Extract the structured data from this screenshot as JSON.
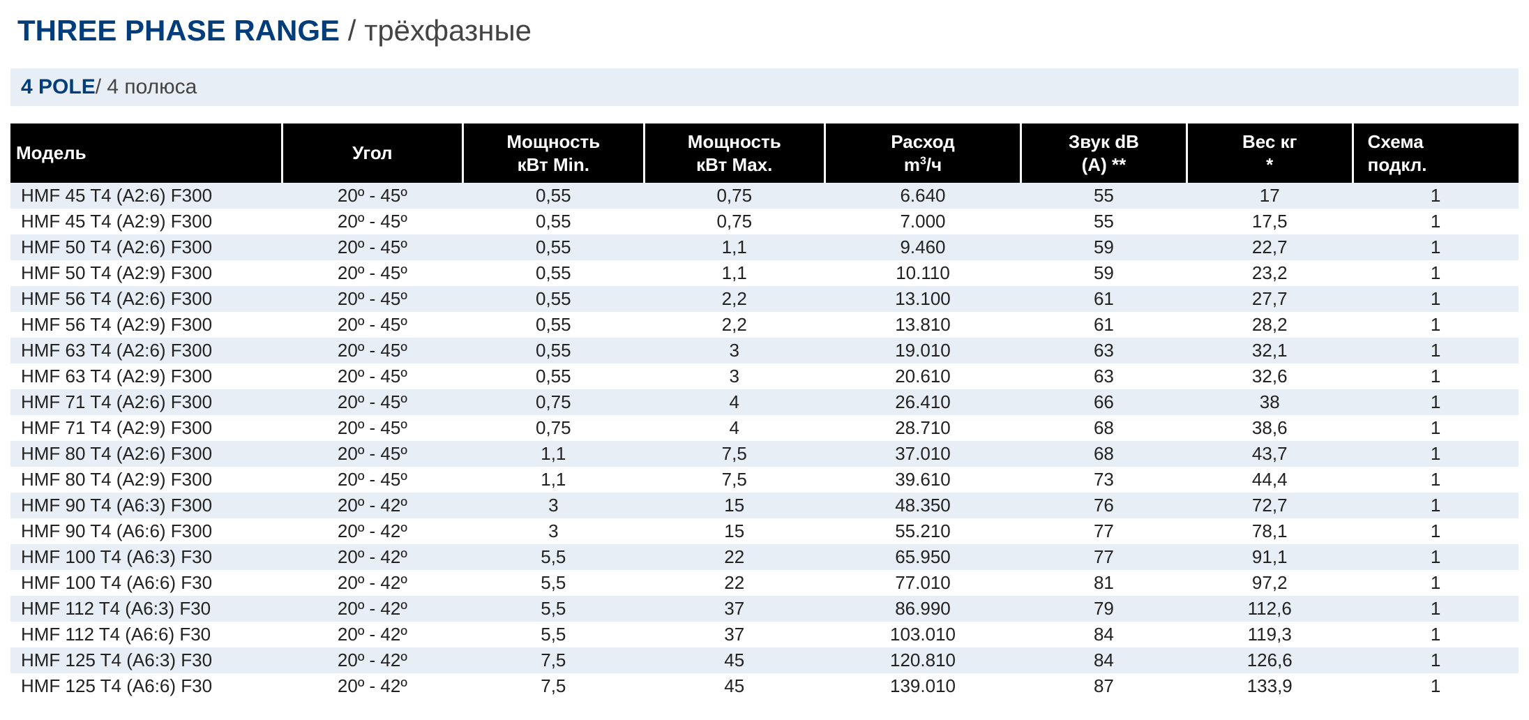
{
  "title": {
    "bold": "THREE PHASE RANGE",
    "sep": " / ",
    "light": "трёхфазные"
  },
  "subtitle": {
    "bold": "4 POLE",
    "sep": "/ ",
    "light": "4 полюса"
  },
  "table": {
    "type": "table",
    "header_bg": "#000000",
    "header_fg": "#ffffff",
    "row_odd_bg": "#e8eef5",
    "row_even_bg": "#ffffff",
    "text_color": "#222222",
    "font_size_pt": 20,
    "columns": [
      {
        "key": "model",
        "label_html": "Модель",
        "align": "left",
        "width_pct": 18
      },
      {
        "key": "angle",
        "label_html": "Угол",
        "align": "center",
        "width_pct": 12
      },
      {
        "key": "kw_min",
        "label_html": "Мощность<br>кВт Min.",
        "align": "center",
        "width_pct": 12
      },
      {
        "key": "kw_max",
        "label_html": "Мощность<br>кВт Max.",
        "align": "center",
        "width_pct": 12
      },
      {
        "key": "flow",
        "label_html": "Расход<br>m<sup>3</sup>/ч",
        "align": "center",
        "width_pct": 13
      },
      {
        "key": "noise",
        "label_html": "Звук dB<br>(A) **",
        "align": "center",
        "width_pct": 11
      },
      {
        "key": "weight",
        "label_html": "Вес кг<br>*",
        "align": "center",
        "width_pct": 11
      },
      {
        "key": "scheme",
        "label_html": "Схема<br>подкл.",
        "align": "left",
        "width_pct": 11
      }
    ],
    "rows": [
      {
        "model": "HMF 45 T4 (A2:6) F300",
        "angle": "20º - 45º",
        "kw_min": "0,55",
        "kw_max": "0,75",
        "flow": "6.640",
        "noise": "55",
        "weight": "17",
        "scheme": "1"
      },
      {
        "model": "HMF 45 T4 (A2:9) F300",
        "angle": "20º - 45º",
        "kw_min": "0,55",
        "kw_max": "0,75",
        "flow": "7.000",
        "noise": "55",
        "weight": "17,5",
        "scheme": "1"
      },
      {
        "model": "HMF 50 T4 (A2:6) F300",
        "angle": "20º - 45º",
        "kw_min": "0,55",
        "kw_max": "1,1",
        "flow": "9.460",
        "noise": "59",
        "weight": "22,7",
        "scheme": "1"
      },
      {
        "model": "HMF 50 T4 (A2:9) F300",
        "angle": "20º - 45º",
        "kw_min": "0,55",
        "kw_max": "1,1",
        "flow": "10.110",
        "noise": "59",
        "weight": "23,2",
        "scheme": "1"
      },
      {
        "model": "HMF 56 T4 (A2:6) F300",
        "angle": "20º - 45º",
        "kw_min": "0,55",
        "kw_max": "2,2",
        "flow": "13.100",
        "noise": "61",
        "weight": "27,7",
        "scheme": "1"
      },
      {
        "model": "HMF 56 T4 (A2:9) F300",
        "angle": "20º - 45º",
        "kw_min": "0,55",
        "kw_max": "2,2",
        "flow": "13.810",
        "noise": "61",
        "weight": "28,2",
        "scheme": "1"
      },
      {
        "model": "HMF 63 T4 (A2:6) F300",
        "angle": "20º - 45º",
        "kw_min": "0,55",
        "kw_max": "3",
        "flow": "19.010",
        "noise": "63",
        "weight": "32,1",
        "scheme": "1"
      },
      {
        "model": "HMF 63 T4 (A2:9) F300",
        "angle": "20º - 45º",
        "kw_min": "0,55",
        "kw_max": "3",
        "flow": "20.610",
        "noise": "63",
        "weight": "32,6",
        "scheme": "1"
      },
      {
        "model": "HMF 71 T4 (A2:6) F300",
        "angle": "20º - 45º",
        "kw_min": "0,75",
        "kw_max": "4",
        "flow": "26.410",
        "noise": "66",
        "weight": "38",
        "scheme": "1"
      },
      {
        "model": "HMF 71 T4 (A2:9) F300",
        "angle": "20º - 45º",
        "kw_min": "0,75",
        "kw_max": "4",
        "flow": "28.710",
        "noise": "68",
        "weight": "38,6",
        "scheme": "1"
      },
      {
        "model": "HMF 80 T4 (A2:6) F300",
        "angle": "20º - 45º",
        "kw_min": "1,1",
        "kw_max": "7,5",
        "flow": "37.010",
        "noise": "68",
        "weight": "43,7",
        "scheme": "1"
      },
      {
        "model": "HMF 80 T4 (A2:9) F300",
        "angle": "20º - 45º",
        "kw_min": "1,1",
        "kw_max": "7,5",
        "flow": "39.610",
        "noise": "73",
        "weight": "44,4",
        "scheme": "1"
      },
      {
        "model": "HMF 90 T4 (A6:3) F300",
        "angle": "20º - 42º",
        "kw_min": "3",
        "kw_max": "15",
        "flow": "48.350",
        "noise": "76",
        "weight": "72,7",
        "scheme": "1"
      },
      {
        "model": "HMF 90 T4 (A6:6) F300",
        "angle": "20º - 42º",
        "kw_min": "3",
        "kw_max": "15",
        "flow": "55.210",
        "noise": "77",
        "weight": "78,1",
        "scheme": "1"
      },
      {
        "model": "HMF 100 T4 (A6:3) F30",
        "angle": "20º - 42º",
        "kw_min": "5,5",
        "kw_max": "22",
        "flow": "65.950",
        "noise": "77",
        "weight": "91,1",
        "scheme": "1"
      },
      {
        "model": "HMF 100 T4 (A6:6) F30",
        "angle": "20º - 42º",
        "kw_min": "5,5",
        "kw_max": "22",
        "flow": "77.010",
        "noise": "81",
        "weight": "97,2",
        "scheme": "1"
      },
      {
        "model": "HMF 112 T4 (A6:3) F30",
        "angle": "20º - 42º",
        "kw_min": "5,5",
        "kw_max": "37",
        "flow": "86.990",
        "noise": "79",
        "weight": "112,6",
        "scheme": "1"
      },
      {
        "model": "HMF 112 T4 (A6:6) F30",
        "angle": "20º - 42º",
        "kw_min": "5,5",
        "kw_max": "37",
        "flow": "103.010",
        "noise": "84",
        "weight": "119,3",
        "scheme": "1"
      },
      {
        "model": "HMF 125 T4 (A6:3) F30",
        "angle": "20º - 42º",
        "kw_min": "7,5",
        "kw_max": "45",
        "flow": "120.810",
        "noise": "84",
        "weight": "126,6",
        "scheme": "1"
      },
      {
        "model": "HMF 125 T4 (A6:6) F30",
        "angle": "20º  - 42º",
        "kw_min": "7,5",
        "kw_max": "45",
        "flow": "139.010",
        "noise": "87",
        "weight": "133,9",
        "scheme": "1"
      }
    ]
  }
}
